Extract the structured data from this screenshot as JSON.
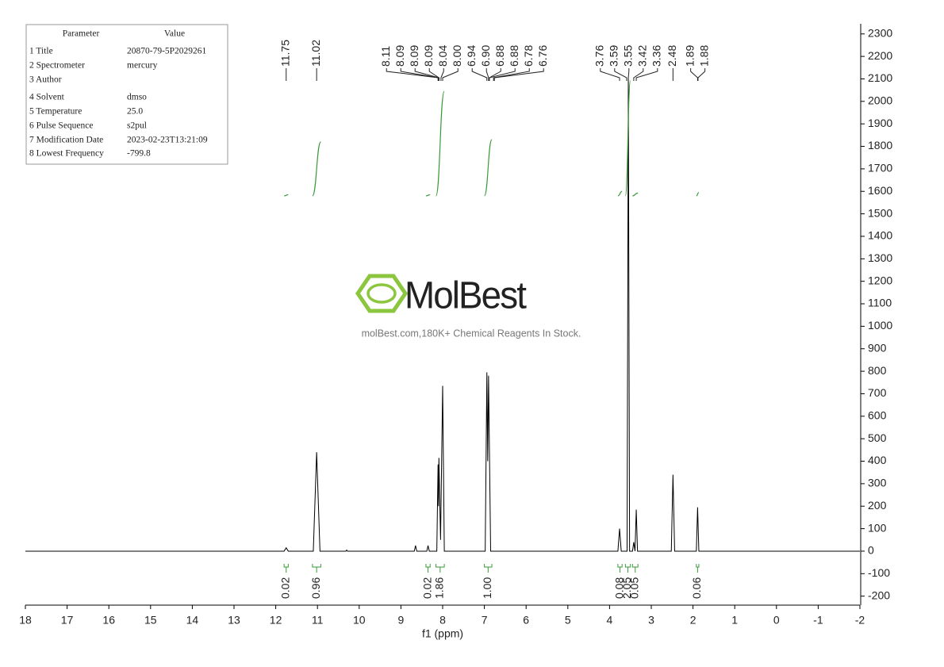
{
  "chart_data": {
    "type": "line",
    "x_label": "f1 (ppm)",
    "xlim": [
      18,
      -2
    ],
    "xticks": [
      18,
      17,
      16,
      15,
      14,
      13,
      12,
      11,
      10,
      9,
      8,
      7,
      6,
      5,
      4,
      3,
      2,
      1,
      0,
      -1,
      -2
    ],
    "ylim": [
      -240,
      2345
    ],
    "yticks": [
      -200,
      -100,
      0,
      100,
      200,
      300,
      400,
      500,
      600,
      700,
      800,
      900,
      1000,
      1100,
      1200,
      1300,
      1400,
      1500,
      1600,
      1700,
      1800,
      1900,
      2000,
      2100,
      2200,
      2300
    ],
    "color": "#000000",
    "integral_color": "#3a9a3a",
    "x": [
      18,
      11.8,
      11.75,
      11.7,
      11.1,
      11.02,
      10.94,
      10.32,
      10.3,
      10.28,
      8.68,
      8.65,
      8.62,
      8.38,
      8.35,
      8.32,
      8.14,
      8.11,
      8.1,
      8.09,
      8.05,
      8.0,
      7.96,
      6.98,
      6.94,
      6.92,
      6.9,
      6.85,
      3.8,
      3.76,
      3.72,
      3.58,
      3.55,
      3.52,
      3.45,
      3.42,
      3.39,
      3.36,
      3.33,
      2.52,
      2.48,
      2.44,
      1.92,
      1.89,
      1.86,
      -2
    ],
    "values": [
      0,
      0,
      15,
      0,
      0,
      440,
      0,
      0,
      5,
      0,
      0,
      25,
      0,
      0,
      25,
      0,
      0,
      385,
      200,
      415,
      50,
      735,
      0,
      0,
      795,
      400,
      780,
      0,
      0,
      100,
      0,
      0,
      2100,
      0,
      0,
      40,
      0,
      185,
      0,
      0,
      340,
      0,
      0,
      195,
      0,
      0
    ],
    "peak_labels": [
      11.75,
      11.02,
      8.11,
      8.09,
      8.09,
      8.09,
      8.04,
      {
        "value": 8,
        "label": "8.00"
      },
      6.94,
      {
        "value": 6.9,
        "label": "6.90"
      },
      6.88,
      6.88,
      6.78,
      6.76,
      3.76,
      3.59,
      3.55,
      3.42,
      3.36,
      2.48,
      1.89,
      1.88
    ],
    "integrals": [
      {
        "x": [
          11.8,
          11.7
        ],
        "value": 0.02
      },
      {
        "x": [
          11.12,
          10.92
        ],
        "value": 0.96
      },
      {
        "x": [
          8.4,
          8.3
        ],
        "value": 0.02
      },
      {
        "x": [
          8.16,
          7.96
        ],
        "value": 1.86
      },
      {
        "x": [
          7.0,
          6.82
        ],
        "value": 1,
        "label": "1.00"
      },
      {
        "x": [
          3.8,
          3.7
        ],
        "value": 0.08
      },
      {
        "x": [
          3.62,
          3.5
        ],
        "value": 2.05
      },
      {
        "x": [
          3.45,
          3.32
        ],
        "value": 0.05
      },
      {
        "x": [
          1.92,
          1.86
        ],
        "value": 0.06
      }
    ],
    "table": {
      "header": [
        "Parameter",
        "Value"
      ],
      "rows": [
        [
          "1 Title",
          "20870-79-5P2029261"
        ],
        [
          "2 Spectrometer",
          "mercury"
        ],
        [
          "3 Author"
        ],
        [
          "4 Solvent",
          "dmso"
        ],
        [
          "5 Temperature",
          "25.0"
        ],
        [
          "6 Pulse Sequence",
          "s2pul"
        ],
        [
          "7 Modification Date",
          "2023-02-23T13:21:09"
        ],
        [
          "8 Lowest Frequency",
          "-799.8"
        ]
      ]
    },
    "watermark": {
      "brand": "MolBest",
      "text": "molBest.com,180K+ Chemical Reagents In Stock."
    }
  }
}
